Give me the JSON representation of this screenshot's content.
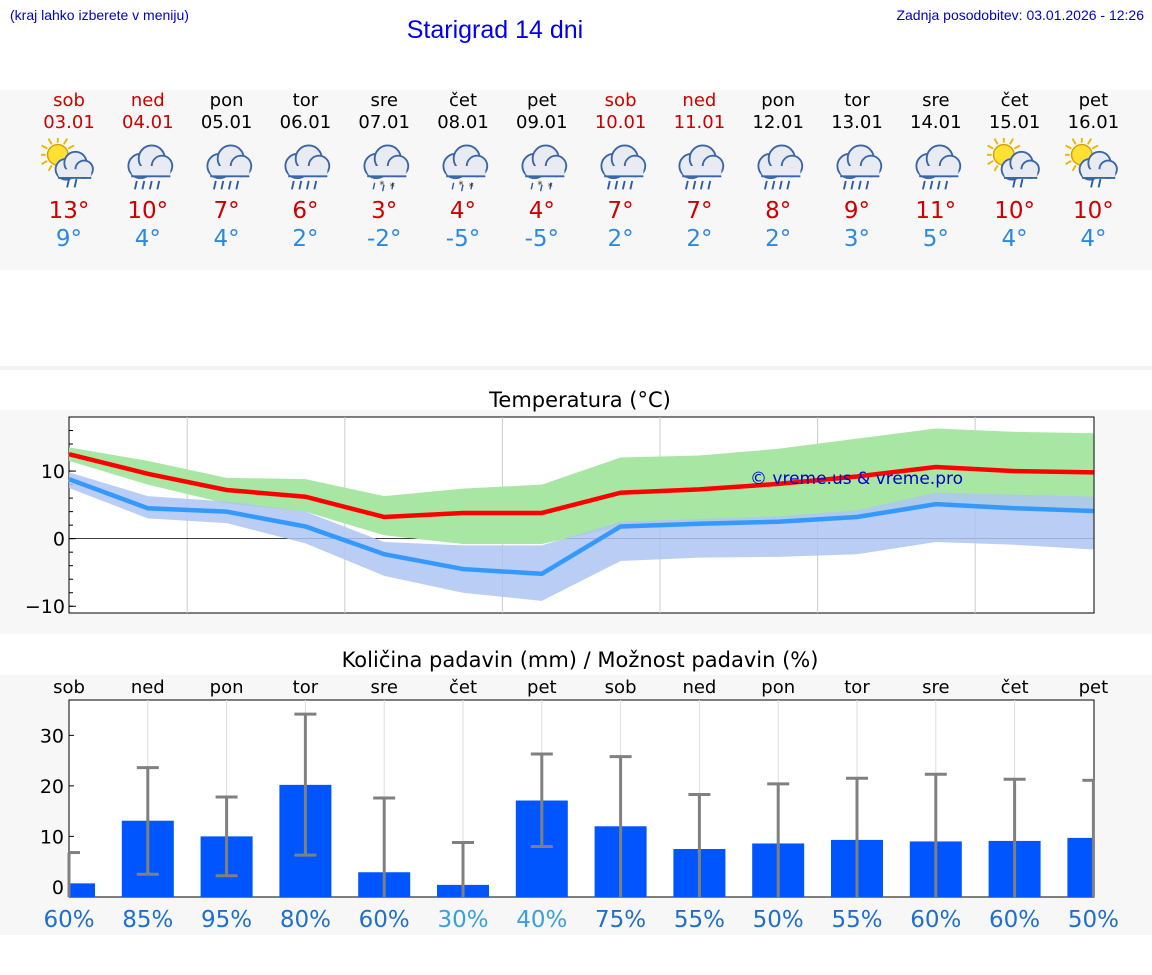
{
  "header": {
    "hint": "(kraj lahko izberete v meniju)",
    "title": "Starigrad 14 dni",
    "updated": "Zadnja posodobitev: 03.01.2026 - 12:26"
  },
  "forecast": [
    {
      "day": "sob",
      "date": "03.01",
      "icon": "sun-cloud-rain-icon",
      "tmax": "13°",
      "tmin": "9°",
      "weekend": true
    },
    {
      "day": "ned",
      "date": "04.01",
      "icon": "cloud-rain-icon",
      "tmax": "10°",
      "tmin": "4°",
      "weekend": true
    },
    {
      "day": "pon",
      "date": "05.01",
      "icon": "cloud-rain-icon",
      "tmax": "7°",
      "tmin": "4°",
      "weekend": false
    },
    {
      "day": "tor",
      "date": "06.01",
      "icon": "cloud-rain-icon",
      "tmax": "6°",
      "tmin": "2°",
      "weekend": false
    },
    {
      "day": "sre",
      "date": "07.01",
      "icon": "cloud-sleet-icon",
      "tmax": "3°",
      "tmin": "-2°",
      "weekend": false
    },
    {
      "day": "čet",
      "date": "08.01",
      "icon": "cloud-sleet-icon",
      "tmax": "4°",
      "tmin": "-5°",
      "weekend": false
    },
    {
      "day": "pet",
      "date": "09.01",
      "icon": "cloud-sleet-icon",
      "tmax": "4°",
      "tmin": "-5°",
      "weekend": false
    },
    {
      "day": "sob",
      "date": "10.01",
      "icon": "cloud-rain-icon",
      "tmax": "7°",
      "tmin": "2°",
      "weekend": true
    },
    {
      "day": "ned",
      "date": "11.01",
      "icon": "cloud-rain-icon",
      "tmax": "7°",
      "tmin": "2°",
      "weekend": true
    },
    {
      "day": "pon",
      "date": "12.01",
      "icon": "cloud-rain-icon",
      "tmax": "8°",
      "tmin": "2°",
      "weekend": false
    },
    {
      "day": "tor",
      "date": "13.01",
      "icon": "cloud-rain-icon",
      "tmax": "9°",
      "tmin": "3°",
      "weekend": false
    },
    {
      "day": "sre",
      "date": "14.01",
      "icon": "cloud-rain-icon",
      "tmax": "11°",
      "tmin": "5°",
      "weekend": false
    },
    {
      "day": "čet",
      "date": "15.01",
      "icon": "sun-cloud-rain-icon",
      "tmax": "10°",
      "tmin": "4°",
      "weekend": false
    },
    {
      "day": "pet",
      "date": "16.01",
      "icon": "sun-cloud-rain-icon",
      "tmax": "10°",
      "tmin": "4°",
      "weekend": false
    }
  ],
  "colors": {
    "max_line": "#ff0000",
    "min_line": "#3399ff",
    "max_band": "#a8e6a3",
    "min_band": "#aec4f2",
    "bar": "#0055ff",
    "whisker": "#808080",
    "pct_dark": "#1f6fcc",
    "pct_light": "#3aa0dd"
  },
  "chart_data": [
    {
      "type": "line",
      "title": "Temperatura (°C)",
      "watermark": "© vreme.us & vreme.pro",
      "ylim": [
        -11,
        18
      ],
      "yticks": [
        -10,
        0,
        10
      ],
      "ytick_labels": [
        "−10",
        "0",
        "10"
      ],
      "x": [
        0,
        1,
        2,
        3,
        4,
        5,
        6,
        7,
        8,
        9,
        10,
        11,
        12,
        13
      ],
      "series": [
        {
          "name": "max",
          "values": [
            12.5,
            9.6,
            7.2,
            6.2,
            3.2,
            3.8,
            3.8,
            6.8,
            7.3,
            8.1,
            9.2,
            10.6,
            10.0,
            9.8
          ]
        },
        {
          "name": "max_band_upper",
          "values": [
            13.5,
            11.5,
            9.0,
            8.8,
            6.3,
            7.4,
            8.0,
            12.0,
            12.3,
            13.3,
            14.8,
            16.3,
            15.8,
            15.6
          ]
        },
        {
          "name": "max_band_lower",
          "values": [
            11.5,
            8.0,
            5.2,
            4.0,
            0.5,
            -0.8,
            -0.8,
            1.8,
            2.3,
            2.5,
            3.1,
            5.1,
            4.5,
            4.2
          ]
        },
        {
          "name": "min",
          "values": [
            8.8,
            4.5,
            4.0,
            1.8,
            -2.3,
            -4.5,
            -5.2,
            1.8,
            2.2,
            2.5,
            3.2,
            5.1,
            4.5,
            4.1
          ]
        },
        {
          "name": "min_band_upper",
          "values": [
            9.8,
            6.3,
            5.5,
            4.0,
            -0.5,
            -1.0,
            -1.0,
            2.5,
            2.9,
            3.3,
            4.2,
            6.8,
            6.5,
            6.2
          ]
        },
        {
          "name": "min_band_lower",
          "values": [
            7.5,
            3.0,
            2.3,
            -0.7,
            -5.5,
            -8.0,
            -9.2,
            -3.3,
            -2.8,
            -2.7,
            -2.3,
            -0.5,
            -0.9,
            -1.6
          ]
        }
      ]
    },
    {
      "type": "bar",
      "title": "Količina padavin (mm) / Možnost padavin (%)",
      "categories": [
        "sob",
        "ned",
        "pon",
        "tor",
        "sre",
        "čet",
        "pet",
        "sob",
        "ned",
        "pon",
        "tor",
        "sre",
        "čet",
        "pet"
      ],
      "ylim": [
        -2,
        37
      ],
      "yticks": [
        0,
        10,
        20,
        30
      ],
      "values": [
        0.7,
        13.1,
        10.0,
        20.2,
        2.9,
        0.4,
        17.1,
        12.0,
        7.5,
        8.6,
        9.3,
        9.0,
        9.1,
        9.7
      ],
      "error_low": [
        -2,
        2.5,
        2.2,
        6.3,
        -2,
        -2,
        8.0,
        -2,
        -2,
        -2,
        -2,
        -2,
        -2,
        -2
      ],
      "error_high": [
        6.8,
        23.6,
        17.8,
        34.2,
        17.6,
        8.8,
        26.3,
        25.8,
        18.3,
        20.4,
        21.5,
        22.3,
        21.3,
        21.1
      ],
      "probability_labels": [
        "60%",
        "85%",
        "95%",
        "80%",
        "60%",
        "30%",
        "40%",
        "75%",
        "55%",
        "50%",
        "55%",
        "60%",
        "60%",
        "50%"
      ],
      "probability_values": [
        60,
        85,
        95,
        80,
        60,
        30,
        40,
        75,
        55,
        50,
        55,
        60,
        60,
        50
      ]
    }
  ]
}
